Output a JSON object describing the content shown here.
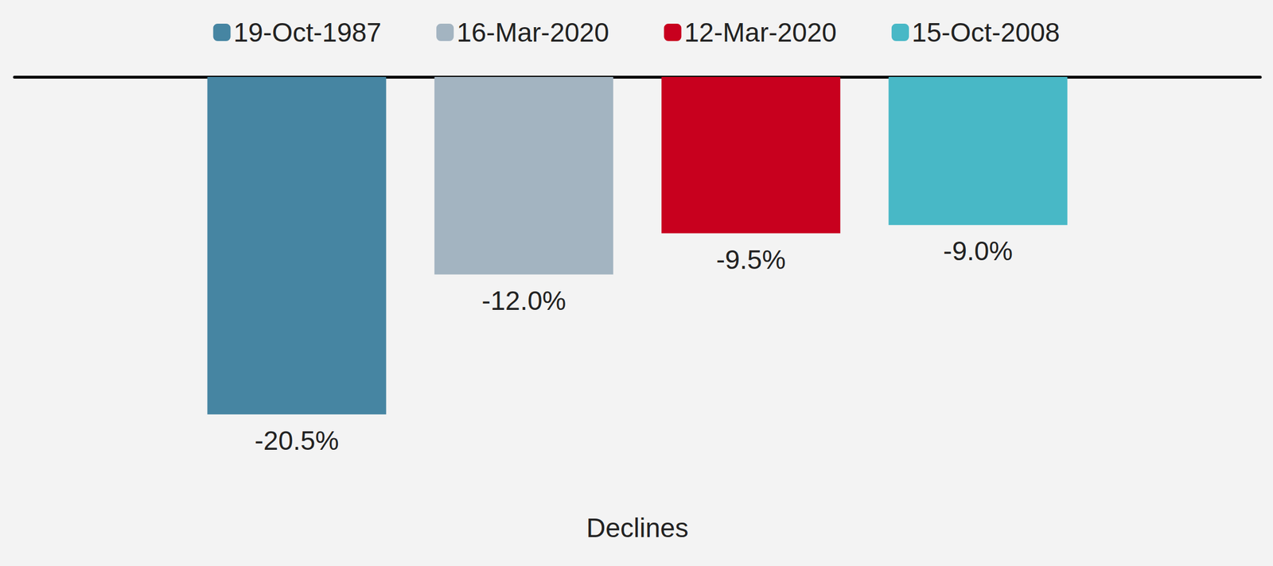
{
  "chart_data": {
    "type": "bar",
    "categories": [
      "Declines"
    ],
    "series": [
      {
        "name": "19-Oct-1987",
        "color": "#4685a2",
        "values": [
          -20.5
        ],
        "value_labels": [
          "-20.5%"
        ]
      },
      {
        "name": "16-Mar-2020",
        "color": "#a3b4c1",
        "values": [
          -12.0
        ],
        "value_labels": [
          "-12.0%"
        ]
      },
      {
        "name": "12-Mar-2020",
        "color": "#c8001e",
        "values": [
          -9.5
        ],
        "value_labels": [
          "-9.5%"
        ]
      },
      {
        "name": "15-Oct-2008",
        "color": "#48b8c6",
        "values": [
          -9.0
        ],
        "value_labels": [
          "-9.0%"
        ]
      }
    ],
    "ylim": [
      -25,
      0
    ],
    "yticks": [
      -25,
      0
    ],
    "grid": false,
    "legend": "top",
    "data_labels": true,
    "tick_labels": "x"
  }
}
